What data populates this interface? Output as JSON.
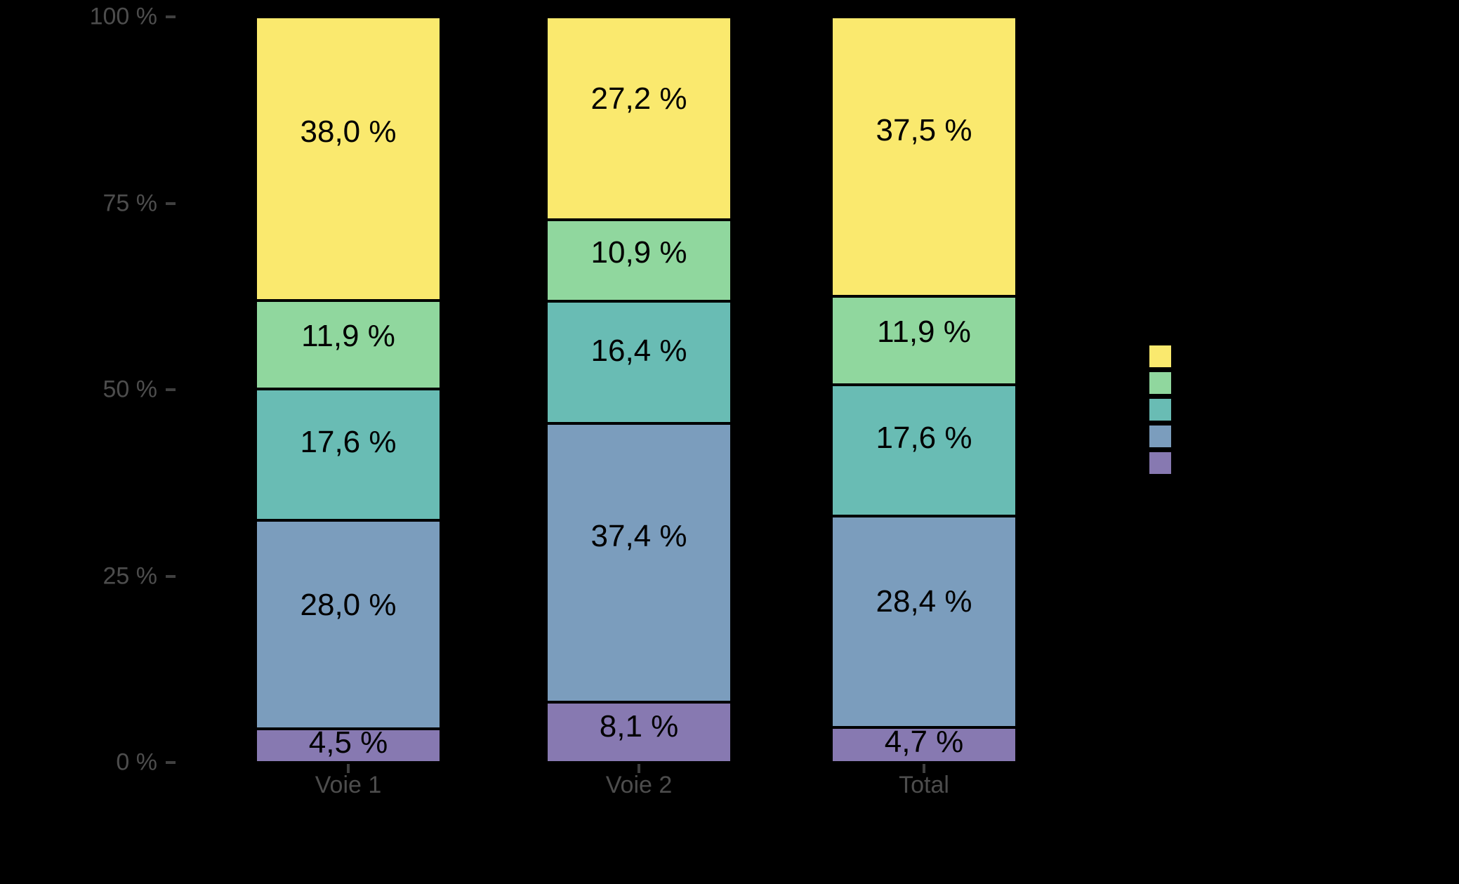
{
  "chart_data": {
    "type": "bar",
    "variant": "stacked-percent",
    "title": "",
    "xlabel": "",
    "ylabel": "",
    "categories": [
      "Voie 1",
      "Voie 2",
      "Total"
    ],
    "series": [
      {
        "name": "yellow",
        "color": "#FAE96E",
        "values": [
          38.0,
          27.2,
          37.5
        ],
        "labels": [
          "38,0 %",
          "27,2 %",
          "37,5 %"
        ]
      },
      {
        "name": "green",
        "color": "#90D79E",
        "values": [
          11.9,
          10.9,
          11.9
        ],
        "labels": [
          "11,9 %",
          "10,9 %",
          "11,9 %"
        ]
      },
      {
        "name": "teal",
        "color": "#69BCB4",
        "values": [
          17.6,
          16.4,
          17.6
        ],
        "labels": [
          "17,6 %",
          "16,4 %",
          "17,6 %"
        ]
      },
      {
        "name": "blue",
        "color": "#7B9DBD",
        "values": [
          28.0,
          37.4,
          28.4
        ],
        "labels": [
          "28,0 %",
          "37,4 %",
          "28,4 %"
        ]
      },
      {
        "name": "purple",
        "color": "#8779B1",
        "values": [
          4.5,
          8.1,
          4.7
        ],
        "labels": [
          "4,5 %",
          "8,1 %",
          "4,7 %"
        ]
      }
    ],
    "ytick_values": [
      0,
      25,
      50,
      75,
      100
    ],
    "ytick_labels": [
      "0 %",
      "25 %",
      "50 %",
      "75 %",
      "100 %"
    ],
    "ylim": [
      0,
      100
    ],
    "grid": false,
    "legend_position": "right",
    "legend_text_visible": false
  },
  "style": {
    "background": "#000000",
    "axis_text_color": "#4D4D4D",
    "tick_color": "#404040",
    "value_label_color": "#000000",
    "segment_border_color": "#000000"
  }
}
